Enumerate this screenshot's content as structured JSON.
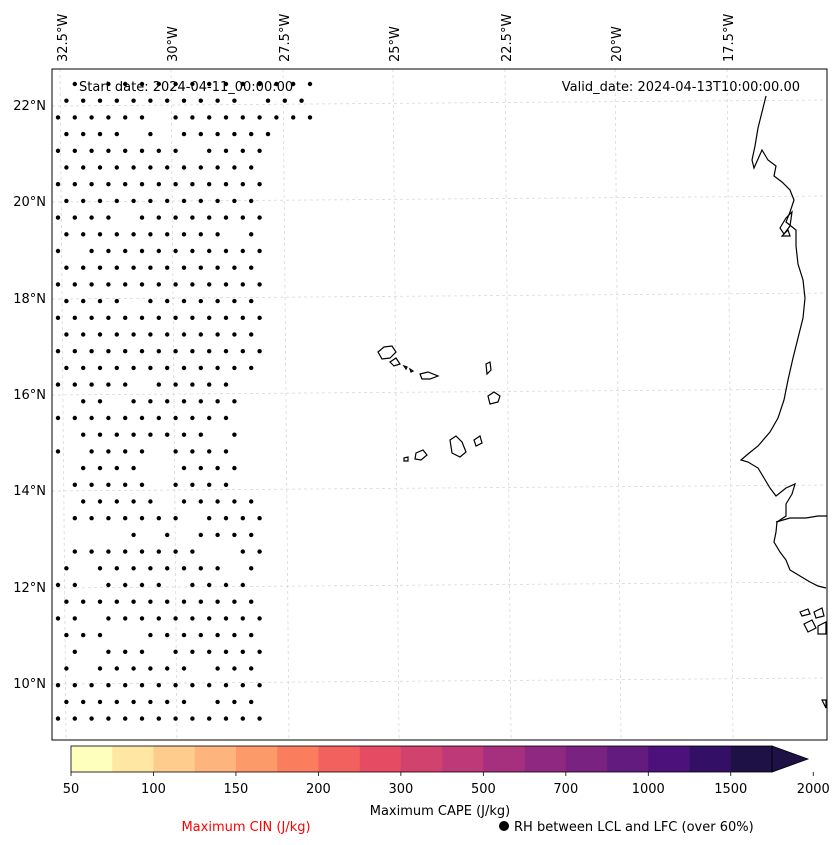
{
  "map": {
    "start_date": "Start date: 2024-04-11_00:00:00",
    "valid_date": "Valid_date: 2024-04-13T10:00:00.00",
    "lon_labels": [
      "32.5°W",
      "30°W",
      "27.5°W",
      "25°W",
      "22.5°W",
      "20°W",
      "17.5°W"
    ],
    "lat_labels": [
      "22°N",
      "20°N",
      "18°N",
      "16°N",
      "14°N",
      "12°N",
      "10°N"
    ],
    "extent": {
      "lon_min": -32.7,
      "lon_max": -15.9,
      "lat_min": 8.9,
      "lat_max": 22.7
    },
    "gridline_color": "#d9d9d9"
  },
  "colorbar": {
    "title": "Maximum CAPE (J/kg)",
    "ticks": [
      "50",
      "100",
      "150",
      "200",
      "300",
      "500",
      "700",
      "1000",
      "1500",
      "2000"
    ],
    "colors": [
      "#fefebd",
      "#fee6a3",
      "#fecd8e",
      "#feb57d",
      "#fd9a6a",
      "#fa7e5e",
      "#f2615d",
      "#e54b63",
      "#d1426f",
      "#bd3977",
      "#a6307d",
      "#8f2880",
      "#792281",
      "#631b7f",
      "#4c117a",
      "#331066",
      "#1d1146"
    ]
  },
  "legend": {
    "cin_label": "Maximum CIN (J/kg)",
    "rh_label": "RH between LCL and LFC (over 60%)",
    "cin_color": "#ff0000"
  }
}
